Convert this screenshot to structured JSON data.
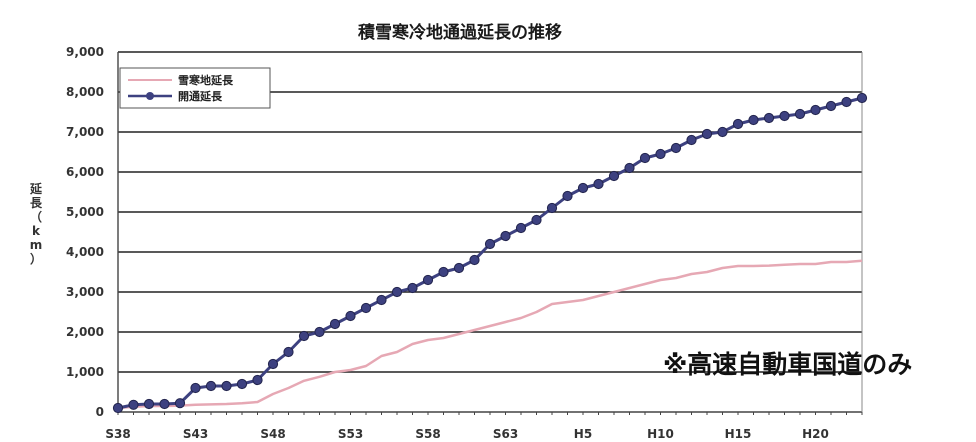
{
  "chart_data": {
    "type": "line",
    "title": "積雪寒冷地通過延長の推移",
    "ylabel": "延長（km）",
    "xlabel": "",
    "ylim": [
      0,
      9000
    ],
    "yticks": [
      0,
      1000,
      2000,
      3000,
      4000,
      5000,
      6000,
      7000,
      8000,
      9000
    ],
    "ytick_labels": [
      "0",
      "1,000",
      "2,000",
      "3,000",
      "4,000",
      "5,000",
      "6,000",
      "7,000",
      "8,000",
      "9,000"
    ],
    "x_tick_labels": [
      "S38",
      "S43",
      "S48",
      "S53",
      "S58",
      "S63",
      "H5",
      "H10",
      "H15",
      "H20"
    ],
    "legend_position": "top-left",
    "grid": true,
    "x": [
      "S38",
      "S39",
      "S40",
      "S41",
      "S42",
      "S43",
      "S44",
      "S45",
      "S46",
      "S47",
      "S48",
      "S49",
      "S50",
      "S51",
      "S52",
      "S53",
      "S54",
      "S55",
      "S56",
      "S57",
      "S58",
      "S59",
      "S60",
      "S61",
      "S62",
      "S63",
      "H1",
      "H2",
      "H3",
      "H4",
      "H5",
      "H6",
      "H7",
      "H8",
      "H9",
      "H10",
      "H11",
      "H12",
      "H13",
      "H14",
      "H15",
      "H16",
      "H17",
      "H18",
      "H19",
      "H20",
      "H21",
      "H22",
      "H23"
    ],
    "series": [
      {
        "name": "雪寒地延長",
        "color": "#e6a8b4",
        "marker": "none",
        "values": [
          100,
          130,
          150,
          150,
          160,
          180,
          190,
          200,
          220,
          250,
          450,
          600,
          780,
          880,
          1000,
          1050,
          1150,
          1400,
          1500,
          1700,
          1800,
          1850,
          1950,
          2050,
          2150,
          2250,
          2350,
          2500,
          2700,
          2750,
          2800,
          2900,
          3000,
          3100,
          3200,
          3300,
          3350,
          3450,
          3500,
          3600,
          3650,
          3650,
          3660,
          3680,
          3700,
          3700,
          3750,
          3750,
          3780
        ]
      },
      {
        "name": "開通延長",
        "color": "#3d4180",
        "marker": "circle",
        "values": [
          100,
          180,
          200,
          200,
          220,
          600,
          650,
          650,
          700,
          800,
          1200,
          1500,
          1900,
          2000,
          2200,
          2400,
          2600,
          2800,
          3000,
          3100,
          3300,
          3500,
          3600,
          3800,
          4200,
          4400,
          4600,
          4800,
          5100,
          5400,
          5600,
          5700,
          5900,
          6100,
          6350,
          6450,
          6600,
          6800,
          6950,
          7000,
          7200,
          7300,
          7350,
          7400,
          7450,
          7550,
          7650,
          7750,
          7850
        ]
      }
    ],
    "annotations": [
      {
        "text": "※高速自動車国道のみ"
      }
    ]
  }
}
